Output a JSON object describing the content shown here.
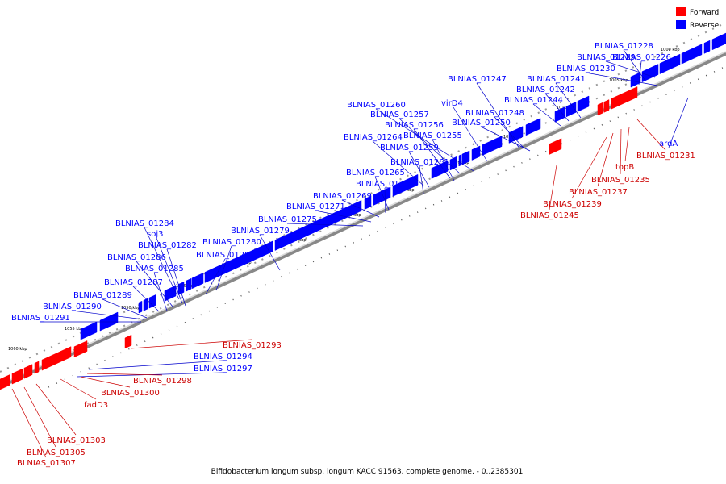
{
  "legend": {
    "items": [
      {
        "label": "Forward",
        "color": "#ff0000"
      },
      {
        "label": "Reverse",
        "color": "#0000ff"
      }
    ]
  },
  "caption": "Bifidobacterium longum subsp. longum KACC 91563, complete genome. - 0..2385301",
  "ticks": [
    "1000 kbp",
    "1005 kbp",
    "1010 kbp",
    "1015 kbp",
    "1020 kbp",
    "1025 kbp",
    "1030 kbp",
    "1035 kbp",
    "1040 kbp",
    "1045 kbp",
    "1050 kbp",
    "1055 kbp",
    "1060 kbp"
  ],
  "reverse_labels": [
    "BLNIAS_01226",
    "BLNIAS_01228",
    "BLNIAS_01229",
    "BLNIAS_01230",
    "BLNIAS_01241",
    "BLNIAS_01242",
    "BLNIAS_01244",
    "BLNIAS_01247",
    "BLNIAS_01248",
    "BLNIAS_01250",
    "virD4",
    "BLNIAS_01260",
    "BLNIAS_01257",
    "BLNIAS_01256",
    "BLNIAS_01255",
    "BLNIAS_01264",
    "BLNIAS_01259",
    "BLNIAS_01261",
    "BLNIAS_01265",
    "BLNIAS_01267",
    "BLNIAS_01269",
    "BLNIAS_01271",
    "BLNIAS_01275",
    "BLNIAS_01279",
    "BLNIAS_01280",
    "BLNIAS_01281",
    "BLNIAS_01284",
    "soj3",
    "BLNIAS_01282",
    "BLNIAS_01286",
    "BLNIAS_01285",
    "BLNIAS_01287",
    "BLNIAS_01289",
    "BLNIAS_01290",
    "BLNIAS_01291",
    "BLNIAS_01294",
    "BLNIAS_01297",
    "ardA"
  ],
  "forward_labels": [
    "BLNIAS_01231",
    "topB",
    "BLNIAS_01235",
    "BLNIAS_01237",
    "BLNIAS_01239",
    "BLNIAS_01245",
    "BLNIAS_01293",
    "BLNIAS_01298",
    "BLNIAS_01300",
    "fadD3",
    "BLNIAS_01303",
    "BLNIAS_01305",
    "BLNIAS_01307"
  ],
  "colors": {
    "forward": "#ff0000",
    "reverse": "#0000ff",
    "forward_line": "#cc0000",
    "reverse_line": "#0000cc"
  }
}
